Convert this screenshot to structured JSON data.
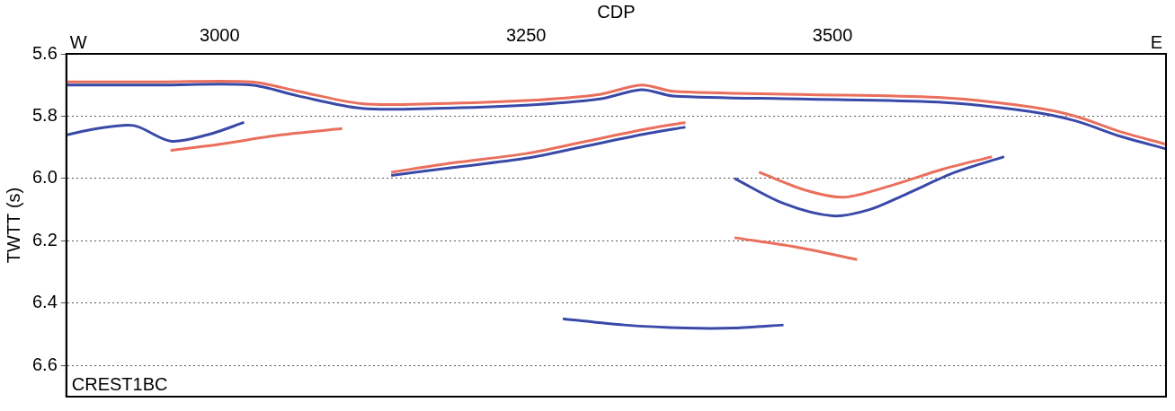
{
  "chart_data": {
    "type": "line",
    "x_label": "CDP",
    "y_label": "TWTT (s)",
    "xlim": [
      2875,
      3772
    ],
    "xticks": [
      3000,
      3250,
      3500
    ],
    "ylim": [
      5.6,
      6.7
    ],
    "yticks": [
      5.6,
      5.8,
      {
        "value": 6,
        "label": "6.0"
      },
      6.2,
      6.4,
      6.6
    ],
    "grid": "y",
    "annotations": [
      {
        "text": "W",
        "position": "top-left"
      },
      {
        "text": "E",
        "position": "top-right"
      },
      {
        "text": "CREST1BC",
        "position": "bottom-left"
      }
    ],
    "series": [
      {
        "color": "#ea6f5d",
        "x": [
          2875,
          2952,
          3026,
          3064,
          3116,
          3176,
          3250,
          3310,
          3344,
          3370,
          3474,
          3586,
          3661,
          3698,
          3735,
          3772
        ],
        "values": [
          5.69,
          5.69,
          5.69,
          5.72,
          5.76,
          5.76,
          5.75,
          5.73,
          5.7,
          5.72,
          5.73,
          5.74,
          5.77,
          5.8,
          5.85,
          5.89
        ]
      },
      {
        "color": "#3949a8",
        "x": [
          2875,
          2952,
          3026,
          3064,
          3116,
          3176,
          3250,
          3310,
          3344,
          3370,
          3474,
          3586,
          3661,
          3698,
          3735,
          3772
        ],
        "values": [
          5.7,
          5.7,
          5.7,
          5.735,
          5.775,
          5.775,
          5.765,
          5.745,
          5.715,
          5.735,
          5.745,
          5.755,
          5.785,
          5.815,
          5.865,
          5.905
        ]
      },
      {
        "color": "#ea6f5d",
        "x": [
          3140,
          3190,
          3250,
          3300,
          3350,
          3380
        ],
        "values": [
          5.98,
          5.95,
          5.92,
          5.88,
          5.84,
          5.82
        ]
      },
      {
        "color": "#3949a8",
        "x": [
          3140,
          3190,
          3250,
          3300,
          3350,
          3380
        ],
        "values": [
          5.99,
          5.965,
          5.935,
          5.895,
          5.855,
          5.835
        ]
      },
      {
        "color": "#3949a8",
        "x": [
          3420,
          3460,
          3500,
          3530,
          3560,
          3600,
          3640
        ],
        "values": [
          6.0,
          6.08,
          6.12,
          6.1,
          6.05,
          5.98,
          5.93
        ]
      },
      {
        "color": "#ea6f5d",
        "x": [
          3440,
          3480,
          3510,
          3550,
          3590,
          3630
        ],
        "values": [
          5.98,
          6.04,
          6.06,
          6.02,
          5.97,
          5.93
        ]
      },
      {
        "color": "#3949a8",
        "x": [
          2875,
          2900,
          2930,
          2960,
          2990,
          3020
        ],
        "values": [
          5.86,
          5.84,
          5.83,
          5.88,
          5.86,
          5.82
        ]
      },
      {
        "color": "#ea6f5d",
        "x": [
          2960,
          3000,
          3050,
          3100
        ],
        "values": [
          5.91,
          5.89,
          5.86,
          5.84
        ]
      },
      {
        "color": "#3949a8",
        "x": [
          3280,
          3330,
          3380,
          3420,
          3460
        ],
        "values": [
          6.45,
          6.47,
          6.48,
          6.48,
          6.47
        ]
      },
      {
        "color": "#ea6f5d",
        "x": [
          3420,
          3470,
          3520
        ],
        "values": [
          6.19,
          6.22,
          6.26
        ]
      }
    ]
  }
}
